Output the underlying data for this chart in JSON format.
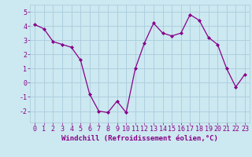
{
  "x": [
    0,
    1,
    2,
    3,
    4,
    5,
    6,
    7,
    8,
    9,
    10,
    11,
    12,
    13,
    14,
    15,
    16,
    17,
    18,
    19,
    20,
    21,
    22,
    23
  ],
  "y": [
    4.1,
    3.8,
    2.9,
    2.7,
    2.5,
    1.6,
    -0.8,
    -2.0,
    -2.1,
    -1.3,
    -2.1,
    1.0,
    2.8,
    4.2,
    3.5,
    3.3,
    3.5,
    4.8,
    4.4,
    3.2,
    2.7,
    1.0,
    -0.3,
    0.6
  ],
  "line_color": "#880088",
  "marker_color": "#880088",
  "bg_color": "#cce8f0",
  "grid_color": "#aaccdd",
  "xlabel": "Windchill (Refroidissement éolien,°C)",
  "ylim": [
    -2.8,
    5.5
  ],
  "xlim": [
    -0.5,
    23.5
  ],
  "yticks": [
    -2,
    -1,
    0,
    1,
    2,
    3,
    4,
    5
  ],
  "xticks": [
    0,
    1,
    2,
    3,
    4,
    5,
    6,
    7,
    8,
    9,
    10,
    11,
    12,
    13,
    14,
    15,
    16,
    17,
    18,
    19,
    20,
    21,
    22,
    23
  ],
  "xlabel_color": "#880088",
  "tick_color": "#880088",
  "label_fontsize": 6.5,
  "tick_fontsize": 6.0,
  "linewidth": 0.9,
  "markersize": 2.0
}
